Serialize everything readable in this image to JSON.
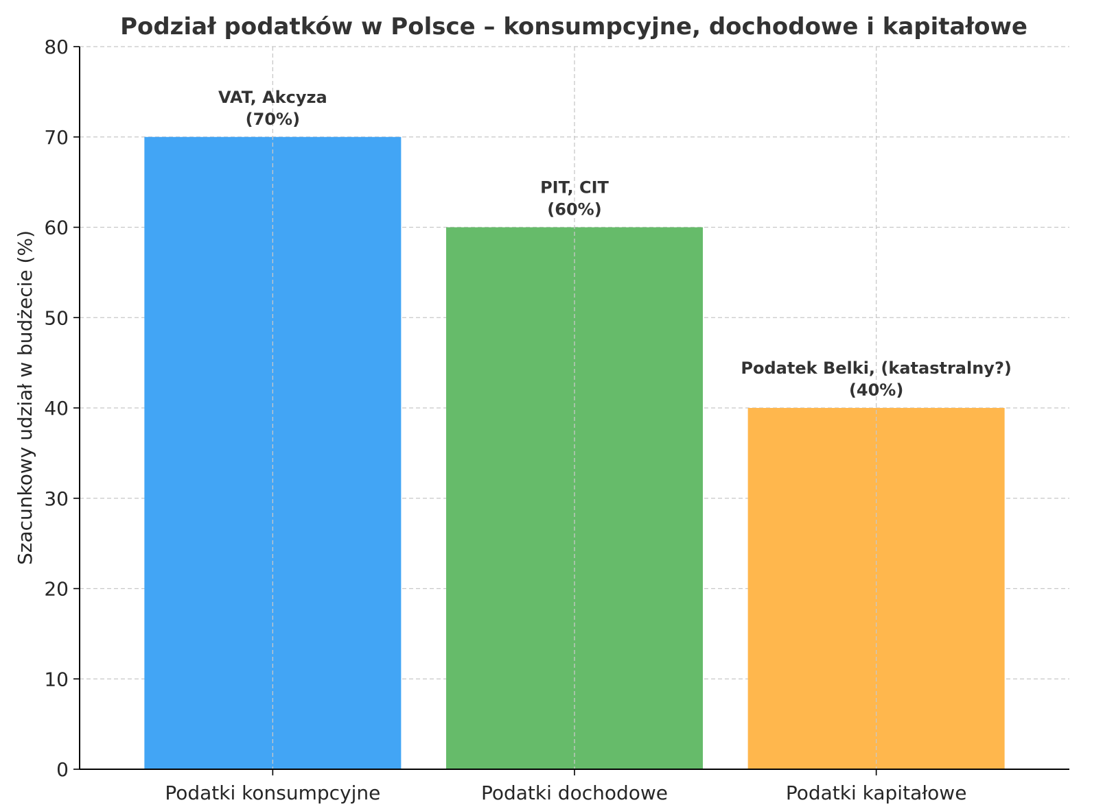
{
  "chart_data": {
    "type": "bar",
    "title": "Podział podatków w Polsce – konsumpcyjne, dochodowe i kapitałowe",
    "xlabel": "",
    "ylabel": "Szacunkowy udział w budżecie (%)",
    "ylim": [
      0,
      80
    ],
    "yticks": [
      "0",
      "10",
      "20",
      "30",
      "40",
      "50",
      "60",
      "70",
      "80"
    ],
    "categories": [
      "Podatki konsumpcyjne",
      "Podatki dochodowe",
      "Podatki kapitałowe"
    ],
    "values": [
      70,
      60,
      40
    ],
    "annotations": [
      [
        "VAT, Akcyza",
        "(70%)"
      ],
      [
        "PIT, CIT",
        "(60%)"
      ],
      [
        "Podatek Belki, (katastralny?)",
        "(40%)"
      ]
    ],
    "colors": [
      "#42a5f5",
      "#66bb6a",
      "#ffb74d"
    ],
    "grid": true,
    "legend": "none"
  }
}
